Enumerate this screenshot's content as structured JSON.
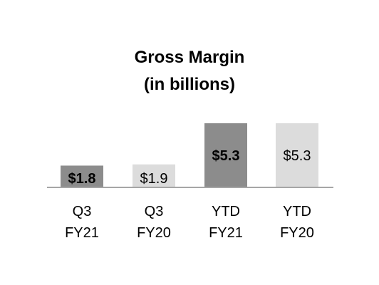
{
  "chart_data": {
    "type": "bar",
    "title": "Gross Margin",
    "subtitle": "(in billions)",
    "categories": [
      [
        "Q3",
        "FY21"
      ],
      [
        "Q3",
        "FY20"
      ],
      [
        "YTD",
        "FY21"
      ],
      [
        "YTD",
        "FY20"
      ]
    ],
    "values": [
      1.8,
      1.9,
      5.3,
      5.3
    ],
    "data_labels": [
      "$1.8",
      "$1.9",
      "$5.3",
      "$5.3"
    ],
    "label_bold": [
      true,
      false,
      true,
      false
    ],
    "colors": [
      "#8c8c8c",
      "#dcdcdc",
      "#8c8c8c",
      "#dcdcdc"
    ],
    "ylim": [
      0,
      5.3
    ],
    "xlabel": "",
    "ylabel": "",
    "grid": false,
    "legend": "none",
    "baseline_color": "#a6a6a6"
  }
}
